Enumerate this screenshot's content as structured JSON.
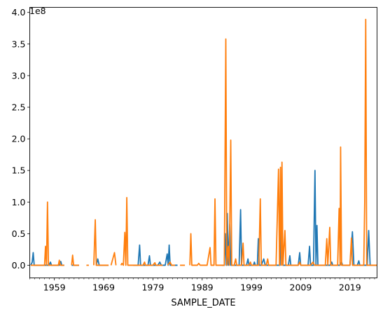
{
  "chart_data": {
    "type": "line",
    "title": "",
    "xlabel": "SAMPLE_DATE",
    "ylabel": "",
    "y_scale_label": "1e8",
    "xlim": [
      1954.0,
      2024.5
    ],
    "ylim": [
      -0.2,
      4.08
    ],
    "grid": false,
    "legend": "none",
    "x_ticks": [
      1959,
      1969,
      1979,
      1989,
      1999,
      2009,
      2019
    ],
    "x_tick_labels": [
      "1959",
      "1969",
      "1979",
      "1989",
      "1999",
      "2009",
      "2019"
    ],
    "y_ticks": [
      0.0,
      0.5,
      1.0,
      1.5,
      2.0,
      2.5,
      3.0,
      3.5,
      4.0
    ],
    "y_tick_labels": [
      "0.0",
      "0.5",
      "1.0",
      "1.5",
      "2.0",
      "2.5",
      "3.0",
      "3.5",
      "4.0"
    ],
    "colors": {
      "series_1": "#1f77b4",
      "series_2": "#ff7f0e"
    },
    "series": [
      {
        "color": "#1f77b4",
        "segments": [
          [
            [
              1954.2,
              0.0
            ],
            [
              1954.5,
              0.05
            ],
            [
              1954.7,
              0.2
            ],
            [
              1954.9,
              0.0
            ],
            [
              1956.0,
              0.0
            ],
            [
              1957.9,
              0.0
            ],
            [
              1958.2,
              0.05
            ],
            [
              1958.4,
              0.0
            ],
            [
              1960.0,
              0.0
            ],
            [
              1960.3,
              0.06
            ],
            [
              1960.5,
              0.0
            ],
            [
              1961.0,
              0.0
            ]
          ],
          [
            [
              1962.5,
              0.0
            ],
            [
              1964.0,
              0.0
            ]
          ],
          [
            [
              1967.5,
              0.0
            ],
            [
              1967.8,
              0.1
            ],
            [
              1968.1,
              0.0
            ],
            [
              1970.0,
              0.0
            ]
          ],
          [
            [
              1975.0,
              0.0
            ],
            [
              1976.0,
              0.0
            ],
            [
              1976.3,
              0.32
            ],
            [
              1976.5,
              0.0
            ],
            [
              1978.0,
              0.0
            ],
            [
              1978.3,
              0.15
            ],
            [
              1978.5,
              0.0
            ],
            [
              1980.0,
              0.0
            ],
            [
              1980.4,
              0.05
            ],
            [
              1980.7,
              0.0
            ],
            [
              1981.5,
              0.0
            ],
            [
              1981.9,
              0.18
            ],
            [
              1982.1,
              0.0
            ],
            [
              1982.3,
              0.32
            ],
            [
              1982.5,
              0.0
            ],
            [
              1984.0,
              0.0
            ]
          ],
          [
            [
              1993.0,
              0.0
            ],
            [
              1993.5,
              0.0
            ],
            [
              1993.7,
              0.5
            ],
            [
              1993.9,
              0.0
            ],
            [
              1994.1,
              0.82
            ],
            [
              1994.3,
              0.0
            ],
            [
              1994.6,
              0.65
            ],
            [
              1994.8,
              0.0
            ],
            [
              1995.5,
              0.0
            ],
            [
              1996.5,
              0.0
            ],
            [
              1996.8,
              0.88
            ],
            [
              1997.0,
              0.0
            ],
            [
              1998.0,
              0.0
            ],
            [
              1998.3,
              0.1
            ],
            [
              1998.5,
              0.0
            ],
            [
              1999.4,
              0.0
            ],
            [
              1999.6,
              0.05
            ],
            [
              1999.8,
              0.0
            ],
            [
              2000.2,
              0.0
            ],
            [
              2000.4,
              0.42
            ],
            [
              2000.6,
              0.0
            ],
            [
              2001.0,
              0.0
            ],
            [
              2001.5,
              0.1
            ],
            [
              2001.8,
              0.0
            ],
            [
              2003.0,
              0.0
            ],
            [
              2003.4,
              0.0
            ],
            [
              2003.6,
              0.0
            ],
            [
              2004.8,
              0.0
            ],
            [
              2005.1,
              1.25
            ],
            [
              2005.4,
              0.0
            ],
            [
              2006.5,
              0.0
            ],
            [
              2006.8,
              0.15
            ],
            [
              2007.0,
              0.0
            ],
            [
              2008.5,
              0.0
            ],
            [
              2008.8,
              0.2
            ],
            [
              2009.0,
              0.0
            ],
            [
              2010.5,
              0.0
            ],
            [
              2010.8,
              0.3
            ],
            [
              2011.0,
              0.0
            ],
            [
              2011.6,
              0.0
            ],
            [
              2011.9,
              1.5
            ],
            [
              2012.1,
              0.0
            ],
            [
              2012.3,
              0.63
            ],
            [
              2012.5,
              0.0
            ],
            [
              2014.0,
              0.0
            ],
            [
              2015.0,
              0.0
            ],
            [
              2015.3,
              0.05
            ],
            [
              2015.5,
              0.0
            ],
            [
              2017.0,
              0.0
            ],
            [
              2017.3,
              0.05
            ],
            [
              2017.5,
              0.0
            ],
            [
              2019.0,
              0.0
            ],
            [
              2019.5,
              0.53
            ],
            [
              2019.8,
              0.0
            ],
            [
              2020.5,
              0.0
            ],
            [
              2020.8,
              0.07
            ],
            [
              2021.0,
              0.0
            ],
            [
              2022.5,
              0.0
            ],
            [
              2022.8,
              0.55
            ],
            [
              2023.1,
              0.0
            ],
            [
              2024.5,
              0.0
            ]
          ]
        ]
      },
      {
        "color": "#ff7f0e",
        "segments": [
          [
            [
              1954.2,
              0.0
            ],
            [
              1955.0,
              0.0
            ],
            [
              1956.5,
              0.0
            ],
            [
              1957.0,
              0.0
            ],
            [
              1957.2,
              0.3
            ],
            [
              1957.4,
              0.0
            ],
            [
              1957.6,
              1.0
            ],
            [
              1957.8,
              0.0
            ],
            [
              1959.0,
              0.0
            ],
            [
              1959.8,
              0.0
            ],
            [
              1960.0,
              0.08
            ],
            [
              1960.2,
              0.0
            ],
            [
              1961.0,
              0.0
            ]
          ],
          [
            [
              1962.5,
              0.0
            ],
            [
              1962.7,
              0.16
            ],
            [
              1962.9,
              0.0
            ],
            [
              1964.0,
              0.0
            ]
          ],
          [
            [
              1965.5,
              0.0
            ],
            [
              1966.0,
              0.0
            ]
          ],
          [
            [
              1967.0,
              0.0
            ],
            [
              1967.3,
              0.72
            ],
            [
              1967.5,
              0.0
            ],
            [
              1970.0,
              0.0
            ]
          ],
          [
            [
              1970.5,
              0.0
            ],
            [
              1971.2,
              0.2
            ],
            [
              1971.5,
              0.0
            ]
          ],
          [
            [
              1972.5,
              0.0
            ],
            [
              1972.7,
              0.03
            ],
            [
              1973.0,
              0.0
            ],
            [
              1973.3,
              0.52
            ],
            [
              1973.5,
              0.0
            ],
            [
              1973.7,
              1.07
            ],
            [
              1973.9,
              0.0
            ],
            [
              1975.0,
              0.0
            ],
            [
              1977.0,
              0.0
            ],
            [
              1977.3,
              0.05
            ],
            [
              1977.5,
              0.0
            ],
            [
              1979.0,
              0.0
            ],
            [
              1979.4,
              0.04
            ],
            [
              1979.6,
              0.0
            ],
            [
              1981.0,
              0.0
            ]
          ],
          [
            [
              1982.0,
              0.0
            ],
            [
              1982.5,
              0.05
            ],
            [
              1982.8,
              0.0
            ],
            [
              1983.5,
              0.0
            ]
          ],
          [
            [
              1984.5,
              0.0
            ],
            [
              1985.5,
              0.0
            ]
          ],
          [
            [
              1986.5,
              0.0
            ],
            [
              1986.7,
              0.5
            ],
            [
              1986.9,
              0.0
            ],
            [
              1988.0,
              0.0
            ],
            [
              1988.3,
              0.03
            ],
            [
              1988.6,
              0.0
            ],
            [
              1990.0,
              0.0
            ],
            [
              1990.6,
              0.28
            ],
            [
              1990.8,
              0.0
            ],
            [
              1991.4,
              0.0
            ],
            [
              1991.6,
              1.05
            ],
            [
              1991.8,
              0.0
            ],
            [
              1993.0,
              0.0
            ],
            [
              1993.5,
              0.0
            ],
            [
              1993.8,
              3.58
            ],
            [
              1994.0,
              0.0
            ],
            [
              1994.3,
              0.3
            ],
            [
              1994.5,
              0.0
            ],
            [
              1994.8,
              1.98
            ],
            [
              1995.0,
              0.0
            ],
            [
              1995.5,
              0.0
            ],
            [
              1995.8,
              0.1
            ],
            [
              1996.0,
              0.0
            ],
            [
              1997.0,
              0.0
            ],
            [
              1997.3,
              0.35
            ],
            [
              1997.5,
              0.0
            ],
            [
              1998.5,
              0.0
            ],
            [
              1998.8,
              0.05
            ],
            [
              1999.0,
              0.0
            ],
            [
              2000.5,
              0.0
            ],
            [
              2000.8,
              1.05
            ],
            [
              2001.0,
              0.0
            ],
            [
              2002.0,
              0.0
            ],
            [
              2002.3,
              0.1
            ],
            [
              2002.5,
              0.0
            ],
            [
              2004.0,
              0.0
            ],
            [
              2004.5,
              1.52
            ],
            [
              2004.7,
              0.0
            ],
            [
              2004.9,
              1.55
            ],
            [
              2005.1,
              0.0
            ],
            [
              2005.2,
              1.63
            ],
            [
              2005.4,
              0.0
            ],
            [
              2005.8,
              0.55
            ],
            [
              2006.0,
              0.0
            ],
            [
              2007.0,
              0.0
            ],
            [
              2008.5,
              0.0
            ],
            [
              2008.8,
              0.05
            ],
            [
              2009.0,
              0.0
            ],
            [
              2011.0,
              0.0
            ],
            [
              2011.5,
              0.05
            ],
            [
              2011.8,
              0.0
            ],
            [
              2013.0,
              0.0
            ],
            [
              2014.0,
              0.0
            ],
            [
              2014.3,
              0.42
            ],
            [
              2014.5,
              0.0
            ],
            [
              2014.9,
              0.6
            ],
            [
              2015.1,
              0.0
            ],
            [
              2016.5,
              0.0
            ],
            [
              2016.8,
              0.9
            ],
            [
              2017.0,
              0.0
            ],
            [
              2017.1,
              1.87
            ],
            [
              2017.3,
              0.0
            ],
            [
              2018.5,
              0.0
            ],
            [
              2019.0,
              0.0
            ],
            [
              2019.3,
              0.43
            ],
            [
              2019.5,
              0.0
            ],
            [
              2020.5,
              0.0
            ],
            [
              2021.8,
              0.0
            ],
            [
              2022.0,
              1.0
            ],
            [
              2022.2,
              3.89
            ],
            [
              2022.4,
              0.0
            ],
            [
              2024.5,
              0.0
            ]
          ]
        ]
      }
    ]
  }
}
